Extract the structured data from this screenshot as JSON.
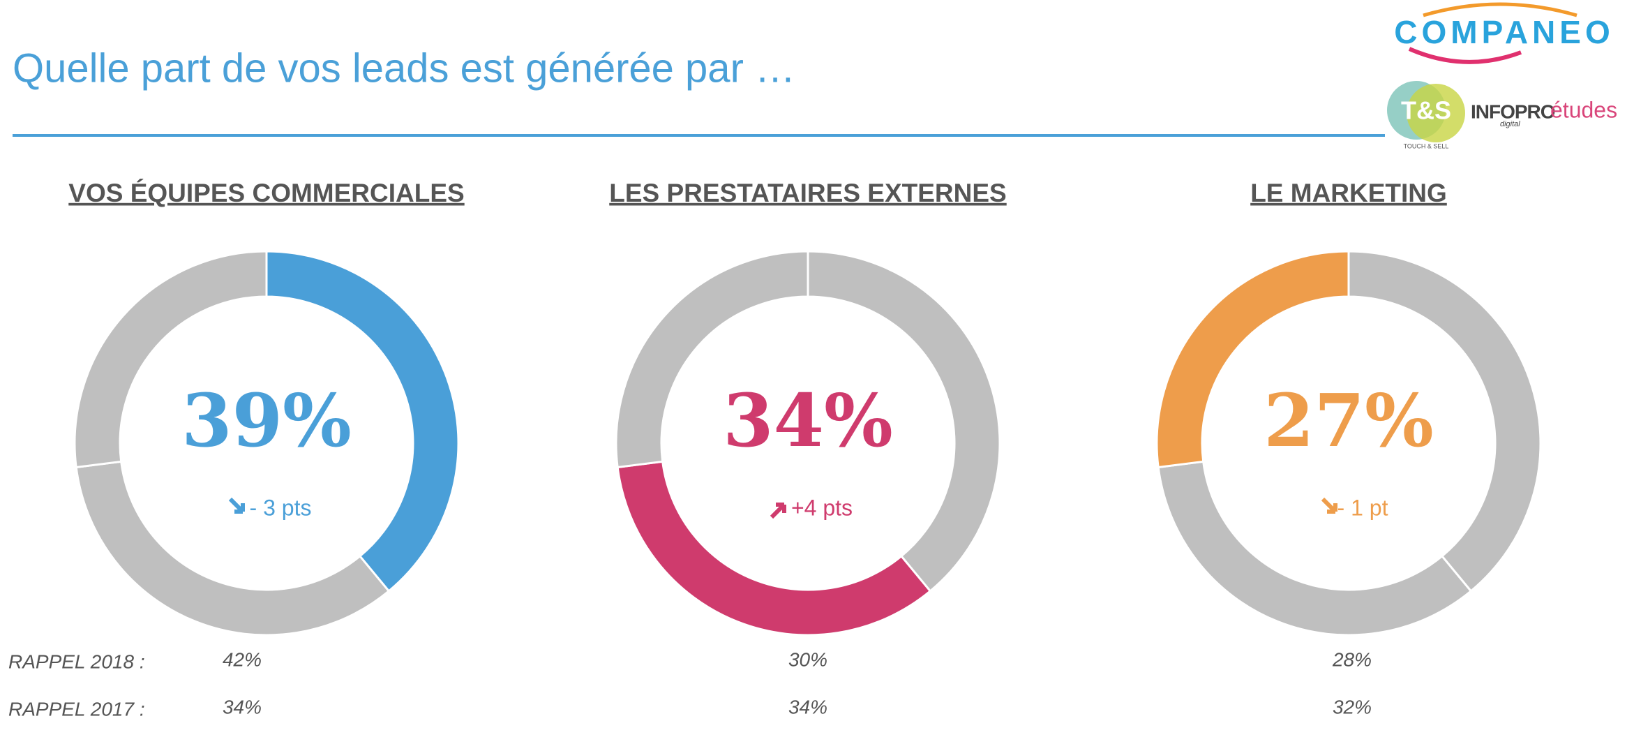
{
  "header": {
    "title": "Quelle part de vos leads est générée par …",
    "logo_main": "COMPANEO",
    "logo_ts": "T&S",
    "logo_ts_sub": "TOUCH & SELL",
    "logo_infopro": "INFOPRO",
    "logo_infopro_sub": "digital",
    "logo_etudes": "études"
  },
  "chart_data": {
    "type": "donut",
    "categories": [
      "VOS ÉQUIPES COMMERCIALES",
      "LES PRESTATAIRES EXTERNES",
      "LE MARKETING"
    ],
    "values": [
      39,
      34,
      27
    ],
    "value_labels": [
      "39%",
      "34%",
      "27%"
    ],
    "colors": [
      "#4a9fd8",
      "#cf3b6d",
      "#ee9d4b"
    ],
    "other_color": "#bfbfbf",
    "changes": [
      "- 3 pts",
      "+4 pts",
      "- 1 pt"
    ],
    "recalls": [
      {
        "label": "RAPPEL 2018 :",
        "values": [
          "42%",
          "30%",
          "28%"
        ]
      },
      {
        "label": "RAPPEL 2017 :",
        "values": [
          "34%",
          "34%",
          "32%"
        ]
      }
    ]
  }
}
